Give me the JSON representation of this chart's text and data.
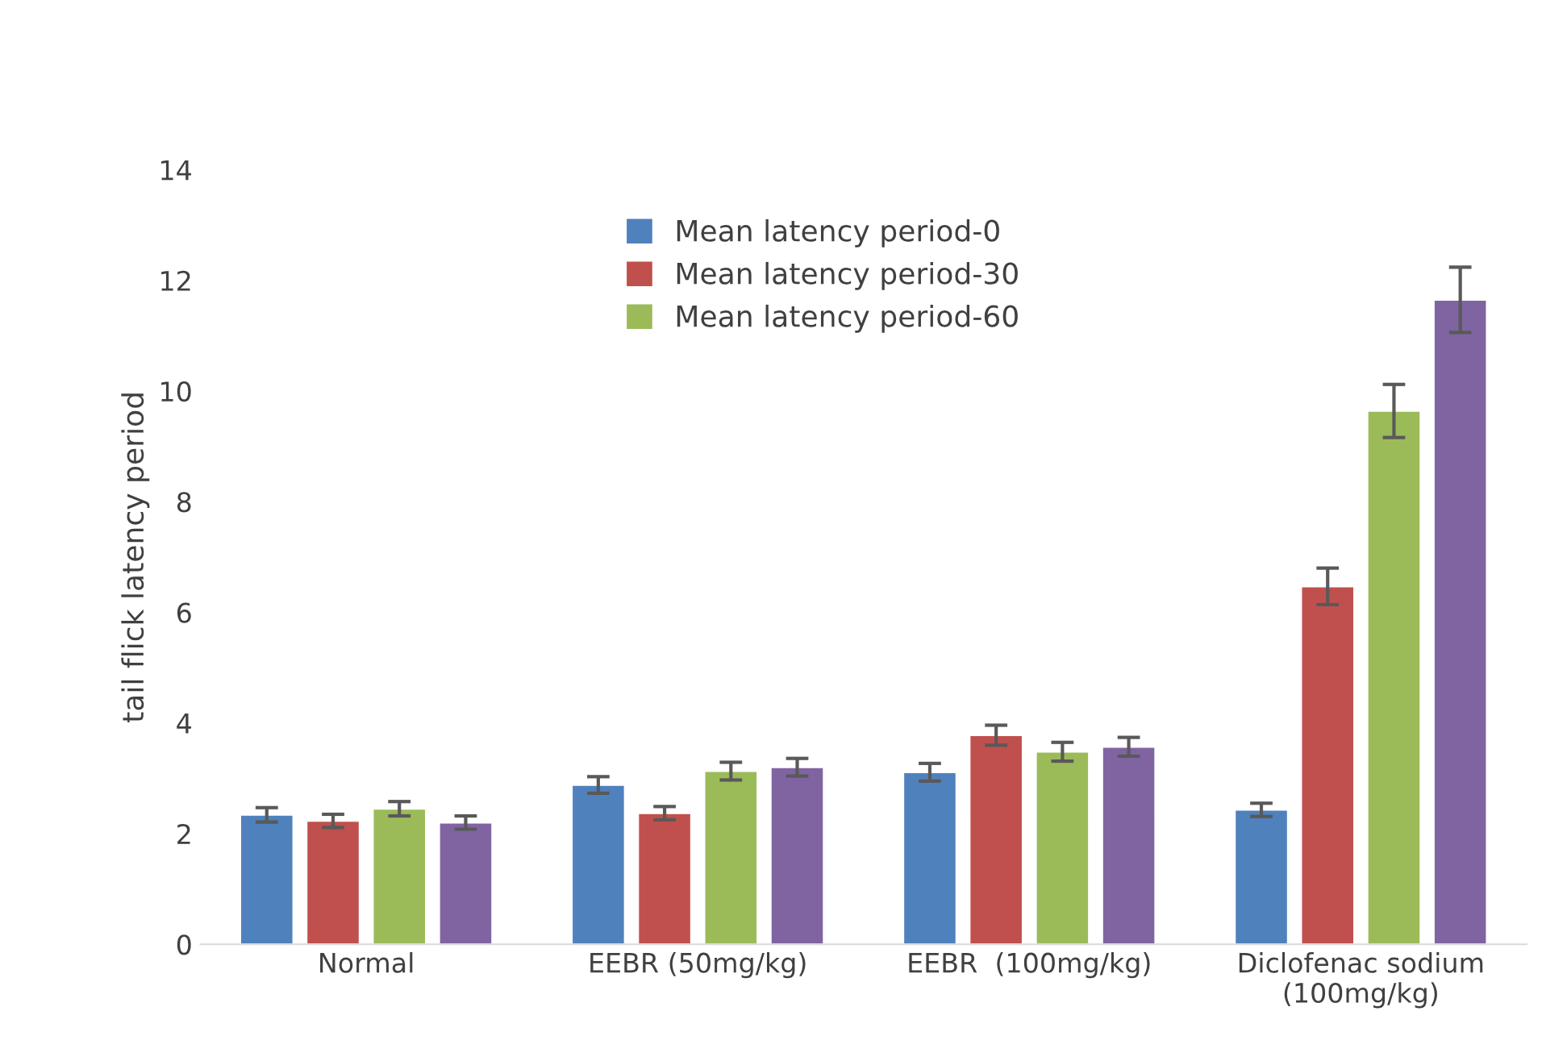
{
  "chart_data": {
    "type": "bar",
    "ylabel": "tail flick latency period",
    "categories": [
      "Normal",
      "EEBR (50mg/kg)",
      "EEBR  (100mg/kg)",
      "Diclofenac sodium\n(100mg/kg)"
    ],
    "series": [
      {
        "name": "Mean latency period-0",
        "color": "#4f81bd",
        "values": [
          2.34,
          2.88,
          3.11,
          2.43
        ],
        "errors": [
          0.13,
          0.15,
          0.16,
          0.12
        ]
      },
      {
        "name": "Mean latency period-30",
        "color": "#c0504d",
        "values": [
          2.23,
          2.37,
          3.78,
          6.47
        ],
        "errors": [
          0.12,
          0.12,
          0.18,
          0.33
        ]
      },
      {
        "name": "Mean latency period-60",
        "color": "#9bbb59",
        "values": [
          2.45,
          3.13,
          3.48,
          9.64
        ],
        "errors": [
          0.13,
          0.16,
          0.17,
          0.48
        ]
      },
      {
        "color": "#8064a2",
        "values": [
          2.2,
          3.2,
          3.57,
          11.65
        ],
        "errors": [
          0.12,
          0.16,
          0.17,
          0.59
        ]
      }
    ],
    "ylim": [
      0,
      14
    ],
    "yticks": [
      0,
      2,
      4,
      6,
      8,
      10,
      12,
      14
    ],
    "grid": false,
    "legend": "top"
  }
}
